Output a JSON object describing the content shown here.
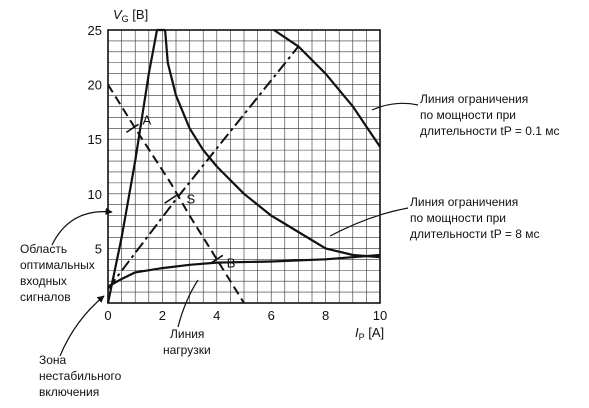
{
  "chart_data": {
    "type": "line",
    "ylabel": {
      "sym": "V",
      "sub": "G",
      "unit": " [В]"
    },
    "xlabel": {
      "sym": "I",
      "sub": "P",
      "unit": " [А]"
    },
    "xlim": [
      0,
      10
    ],
    "ylim": [
      0,
      25
    ],
    "x_ticks": [
      "0",
      "2",
      "4",
      "6",
      "8",
      "10"
    ],
    "y_ticks": [
      "5",
      "10",
      "15",
      "20",
      "25"
    ],
    "grid": true,
    "series": [
      {
        "style": "solid",
        "points": [
          [
            0,
            0
          ],
          [
            0.5,
            6
          ],
          [
            1,
            13
          ],
          [
            1.5,
            21
          ],
          [
            1.8,
            25
          ],
          [
            2.1,
            25
          ]
        ]
      },
      {
        "style": "solid",
        "points": [
          [
            0,
            1.5
          ],
          [
            0.5,
            2.2
          ],
          [
            1,
            2.8
          ],
          [
            2,
            3.2
          ],
          [
            3,
            3.5
          ],
          [
            4,
            3.7
          ],
          [
            6,
            3.8
          ],
          [
            8,
            4
          ],
          [
            10,
            4.4
          ]
        ]
      },
      {
        "style": "solid",
        "points": [
          [
            2.1,
            25
          ],
          [
            2.2,
            22
          ],
          [
            2.5,
            19
          ],
          [
            3,
            16
          ],
          [
            3.5,
            14
          ],
          [
            4,
            12.5
          ],
          [
            5,
            10
          ],
          [
            6,
            8
          ],
          [
            7,
            6.5
          ],
          [
            8,
            5
          ],
          [
            9,
            4.4
          ],
          [
            10,
            4.2
          ]
        ]
      },
      {
        "style": "solid",
        "points": [
          [
            6.1,
            25
          ],
          [
            7,
            23.5
          ],
          [
            8,
            21
          ],
          [
            9,
            18
          ],
          [
            10,
            14.3
          ]
        ]
      },
      {
        "style": "dashed",
        "points": [
          [
            0,
            20
          ],
          [
            1,
            16
          ],
          [
            2.3,
            11
          ],
          [
            3,
            8
          ],
          [
            4,
            4
          ],
          [
            5,
            0
          ]
        ]
      },
      {
        "style": "dashdot",
        "points": [
          [
            0,
            1.3
          ],
          [
            2.5,
            9.5
          ],
          [
            7,
            23.5
          ]
        ]
      }
    ],
    "annotations": [
      {
        "label": "A",
        "x": 0.9,
        "y": 16
      },
      {
        "label": "S",
        "x": 2.3,
        "y": 9.5
      },
      {
        "label": "B",
        "x": 4.0,
        "y": 4
      },
      {
        "lines": [
          "Линия ограничения",
          "по мощности при",
          "длительности tP = 0.1 мс"
        ]
      },
      {
        "lines": [
          "Линия ограничения",
          "по мощности при",
          "длительности tP = 8 мс"
        ]
      },
      {
        "lines": [
          "Область",
          "оптимальных",
          "входных",
          "сигналов"
        ]
      },
      {
        "lines": [
          "Линия",
          "нагрузки"
        ]
      },
      {
        "lines": [
          "Зона",
          "нестабильного",
          "включения"
        ]
      }
    ]
  }
}
